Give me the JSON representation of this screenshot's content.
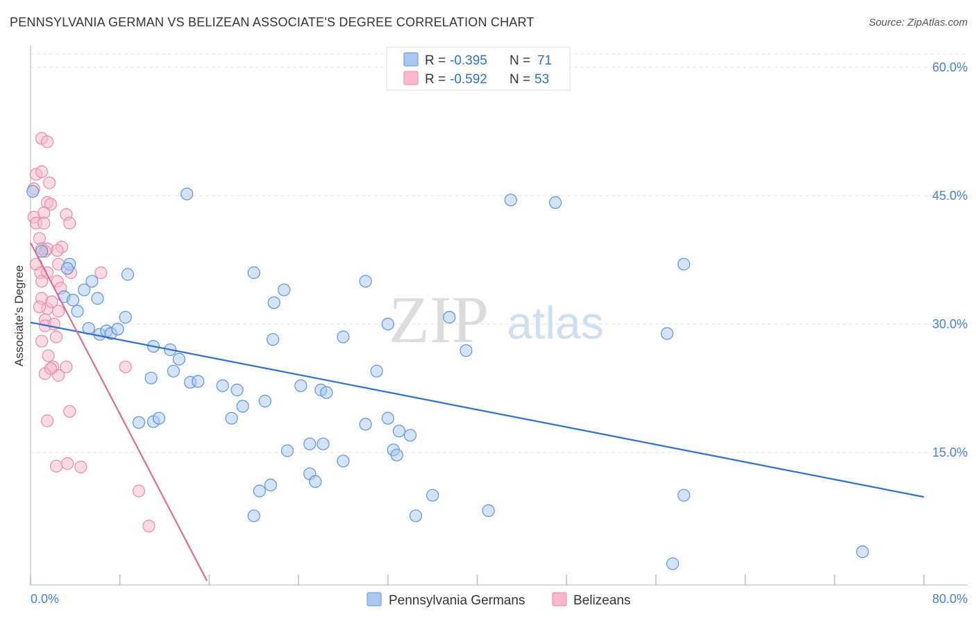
{
  "header": {
    "title": "PENNSYLVANIA GERMAN VS BELIZEAN ASSOCIATE'S DEGREE CORRELATION CHART",
    "source": "Source: ZipAtlas.com"
  },
  "watermark": {
    "zip": "ZIP",
    "atlas": "atlas"
  },
  "legend": {
    "r_label": "R =",
    "n_label": "N =",
    "rows": [
      {
        "r": "-0.395",
        "n": "71"
      },
      {
        "r": "-0.592",
        "n": "53"
      }
    ]
  },
  "colors": {
    "blue_fill": "#a9c8ef",
    "blue_stroke": "#5b93d9",
    "blue_line": "#2b6fd0",
    "pink_fill": "#f6b8ca",
    "pink_stroke": "#e88aa8",
    "pink_line": "#e06893",
    "grid": "#dddddd"
  },
  "chart_data": {
    "type": "scatter",
    "title": "PENNSYLVANIA GERMAN VS BELIZEAN ASSOCIATE'S DEGREE CORRELATION CHART",
    "xlabel": "",
    "ylabel": "Associate's Degree",
    "xlim": [
      0,
      80
    ],
    "ylim": [
      0,
      60
    ],
    "x_tick_labels": [
      "0.0%",
      "80.0%"
    ],
    "y_ticks": [
      15,
      30,
      45,
      60
    ],
    "y_tick_labels": [
      "15.0%",
      "30.0%",
      "45.0%",
      "60.0%"
    ],
    "series": [
      {
        "name": "Pennsylvania Germans",
        "r": -0.395,
        "n": 71,
        "trend": {
          "x": [
            0,
            80
          ],
          "y": [
            30.2,
            9.8
          ]
        },
        "points": [
          [
            0.2,
            45.5
          ],
          [
            3.5,
            37.0
          ],
          [
            1.0,
            38.5
          ],
          [
            3.3,
            36.5
          ],
          [
            4.8,
            34.0
          ],
          [
            3.0,
            33.2
          ],
          [
            3.8,
            32.8
          ],
          [
            4.2,
            31.5
          ],
          [
            5.5,
            35.0
          ],
          [
            6.0,
            33.0
          ],
          [
            5.2,
            29.5
          ],
          [
            6.2,
            28.8
          ],
          [
            6.8,
            29.2
          ],
          [
            7.2,
            28.9
          ],
          [
            7.8,
            29.4
          ],
          [
            8.5,
            30.8
          ],
          [
            8.7,
            35.8
          ],
          [
            11.0,
            27.4
          ],
          [
            12.5,
            27.0
          ],
          [
            13.3,
            25.9
          ],
          [
            12.8,
            24.5
          ],
          [
            10.8,
            23.7
          ],
          [
            14.3,
            23.2
          ],
          [
            15.0,
            23.3
          ],
          [
            17.2,
            22.8
          ],
          [
            18.5,
            22.3
          ],
          [
            19.0,
            20.4
          ],
          [
            21.0,
            21.0
          ],
          [
            11.0,
            18.6
          ],
          [
            11.5,
            19.0
          ],
          [
            9.7,
            18.5
          ],
          [
            18.0,
            19.0
          ],
          [
            20.0,
            36.0
          ],
          [
            21.7,
            28.2
          ],
          [
            21.8,
            32.5
          ],
          [
            22.7,
            34.0
          ],
          [
            24.2,
            22.8
          ],
          [
            23.0,
            15.2
          ],
          [
            26.0,
            22.3
          ],
          [
            26.5,
            22.0
          ],
          [
            25.0,
            16.0
          ],
          [
            26.2,
            16.0
          ],
          [
            28.0,
            28.5
          ],
          [
            30.0,
            35.0
          ],
          [
            31.0,
            24.5
          ],
          [
            30.0,
            18.3
          ],
          [
            32.0,
            30.0
          ],
          [
            32.0,
            19.0
          ],
          [
            33.0,
            17.5
          ],
          [
            34.0,
            17.0
          ],
          [
            32.5,
            15.3
          ],
          [
            32.8,
            14.7
          ],
          [
            25.0,
            12.5
          ],
          [
            25.5,
            11.6
          ],
          [
            21.5,
            11.2
          ],
          [
            20.0,
            7.6
          ],
          [
            20.5,
            10.5
          ],
          [
            14.0,
            45.2
          ],
          [
            28.0,
            14.0
          ],
          [
            34.5,
            7.6
          ],
          [
            36.0,
            10.0
          ],
          [
            37.5,
            30.8
          ],
          [
            39.0,
            26.9
          ],
          [
            41.0,
            8.2
          ],
          [
            43.0,
            44.5
          ],
          [
            47.0,
            44.2
          ],
          [
            58.5,
            37.0
          ],
          [
            57.0,
            28.9
          ],
          [
            58.5,
            10.0
          ],
          [
            57.5,
            2.0
          ],
          [
            74.5,
            3.4
          ]
        ]
      },
      {
        "name": "Belizeans",
        "r": -0.592,
        "n": 53,
        "trend": {
          "x": [
            0,
            15.8
          ],
          "y": [
            39.5,
            0
          ]
        },
        "points": [
          [
            0.3,
            45.8
          ],
          [
            0.5,
            47.5
          ],
          [
            1.0,
            47.8
          ],
          [
            1.0,
            51.7
          ],
          [
            1.5,
            51.3
          ],
          [
            1.7,
            46.5
          ],
          [
            1.5,
            44.2
          ],
          [
            1.8,
            44.0
          ],
          [
            0.3,
            42.5
          ],
          [
            0.5,
            41.8
          ],
          [
            1.2,
            43.0
          ],
          [
            1.2,
            41.8
          ],
          [
            0.8,
            40.0
          ],
          [
            1.0,
            38.8
          ],
          [
            1.3,
            38.5
          ],
          [
            1.5,
            38.8
          ],
          [
            0.5,
            37.0
          ],
          [
            0.9,
            36.0
          ],
          [
            1.5,
            36.0
          ],
          [
            2.5,
            37.0
          ],
          [
            2.8,
            39.0
          ],
          [
            3.2,
            42.8
          ],
          [
            3.5,
            41.8
          ],
          [
            3.6,
            36.0
          ],
          [
            1.0,
            35.0
          ],
          [
            2.4,
            35.0
          ],
          [
            1.0,
            33.0
          ],
          [
            1.5,
            31.8
          ],
          [
            1.3,
            30.5
          ],
          [
            2.5,
            31.5
          ],
          [
            1.3,
            29.8
          ],
          [
            2.1,
            30.0
          ],
          [
            2.3,
            28.5
          ],
          [
            1.0,
            28.0
          ],
          [
            0.8,
            32.0
          ],
          [
            2.0,
            25.0
          ],
          [
            2.5,
            24.0
          ],
          [
            1.3,
            24.2
          ],
          [
            1.8,
            24.8
          ],
          [
            3.2,
            25.0
          ],
          [
            3.5,
            19.8
          ],
          [
            1.5,
            18.7
          ],
          [
            2.3,
            13.4
          ],
          [
            3.3,
            13.7
          ],
          [
            4.5,
            13.3
          ],
          [
            8.5,
            25.0
          ],
          [
            9.7,
            10.5
          ],
          [
            10.6,
            6.4
          ],
          [
            6.3,
            36.0
          ],
          [
            2.7,
            34.2
          ],
          [
            1.9,
            32.6
          ],
          [
            2.4,
            38.6
          ],
          [
            1.6,
            26.3
          ]
        ]
      }
    ]
  }
}
